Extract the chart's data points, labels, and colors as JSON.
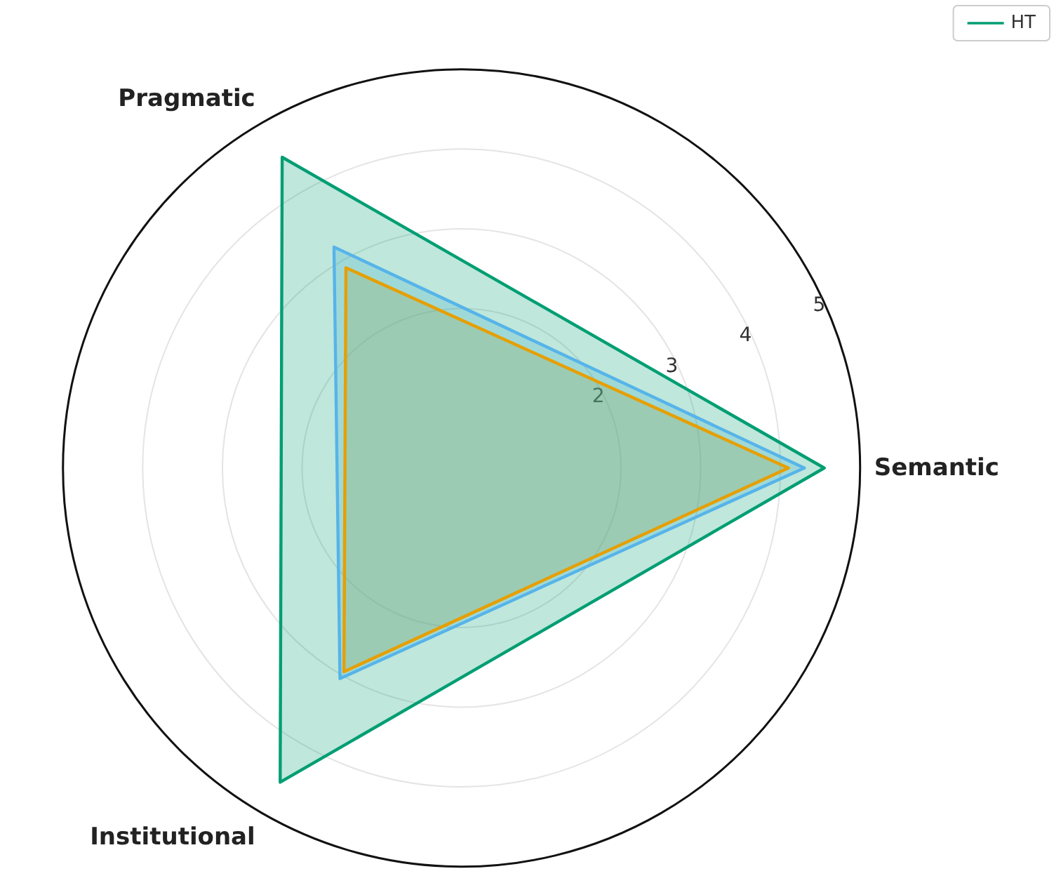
{
  "chart_data": {
    "type": "radar",
    "categories": [
      "Semantic",
      "Institutional",
      "Pragmatic"
    ],
    "series": [
      {
        "color": "#e69f00",
        "values": [
          4.1,
          2.95,
          2.9
        ]
      },
      {
        "color": "#56b4e9",
        "values": [
          4.3,
          3.05,
          3.2
        ]
      },
      {
        "name": "HT",
        "color": "#009e73",
        "values": [
          4.55,
          4.55,
          4.5
        ]
      }
    ],
    "ylim": [
      0,
      5
    ],
    "yticks": [
      2,
      3,
      4,
      5
    ],
    "grid": true,
    "legend": "top right",
    "marker": "none",
    "line_style": "solid"
  }
}
